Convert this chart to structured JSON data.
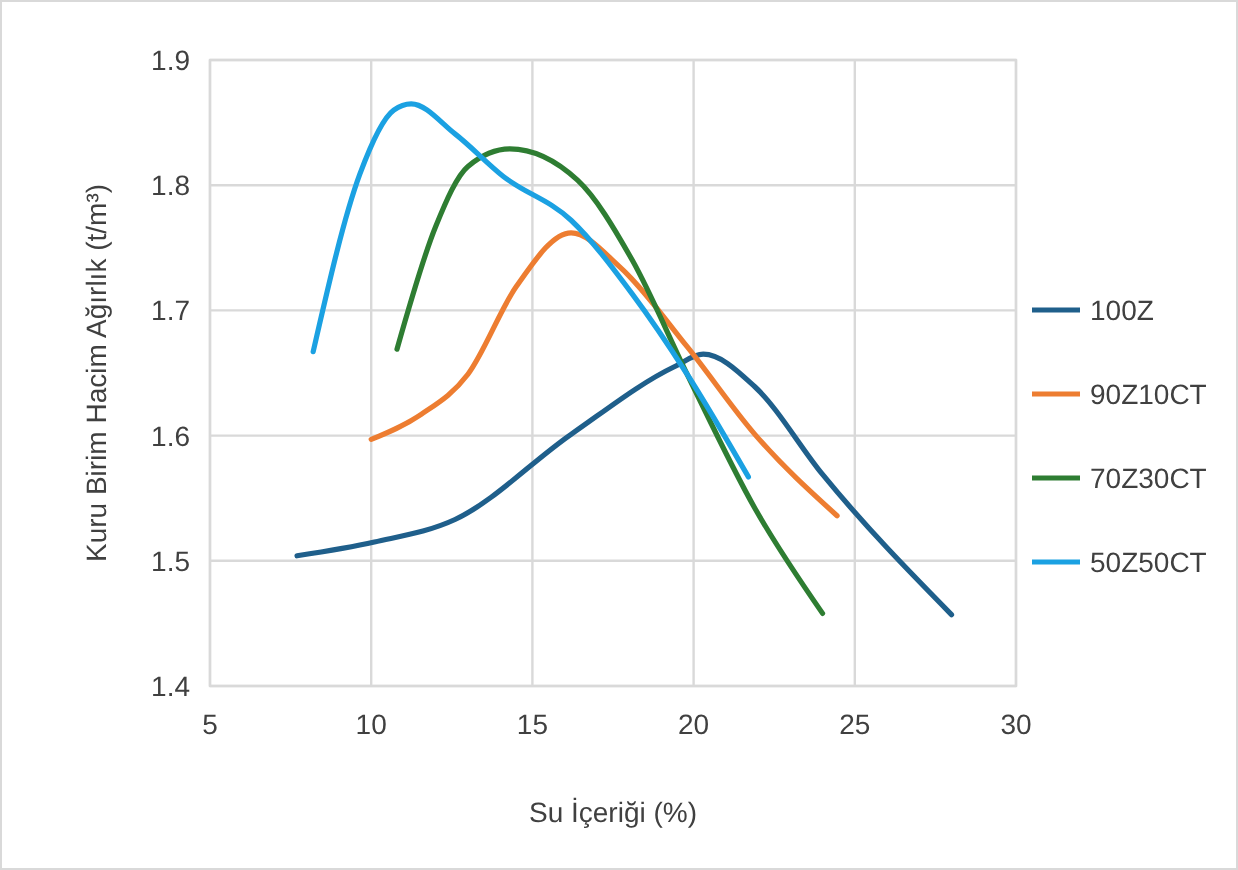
{
  "chart_data": {
    "type": "line",
    "xlabel": "Su İçeriği (%)",
    "ylabel": "Kuru Birim Hacim Ağırlık (t/m³)",
    "xlim": [
      5,
      30
    ],
    "xticks": [
      5,
      10,
      15,
      20,
      25,
      30
    ],
    "ylim": [
      1.4,
      1.9
    ],
    "yticks": [
      1.4,
      1.5,
      1.6,
      1.7,
      1.8,
      1.9
    ],
    "grid": true,
    "legend": "right",
    "marker": "none",
    "line_style": "solid",
    "series": [
      {
        "name": "100Z",
        "color": "#1f5f8b",
        "x": [
          7.7,
          10.1,
          12.6,
          16.2,
          19.4,
          20.3,
          21.9,
          24.0,
          28.0
        ],
        "values": [
          1.504,
          1.515,
          1.533,
          1.601,
          1.655,
          1.665,
          1.639,
          1.569,
          1.457
        ]
      },
      {
        "name": "90Z10CT",
        "color": "#ed7d31",
        "x": [
          10.0,
          11.55,
          13.0,
          14.5,
          16.2,
          17.7,
          19.8,
          21.9,
          24.45
        ],
        "values": [
          1.597,
          1.617,
          1.649,
          1.719,
          1.762,
          1.735,
          1.671,
          1.601,
          1.536
        ]
      },
      {
        "name": "70Z30CT",
        "color": "#2e7d32",
        "x": [
          10.8,
          12.0,
          13.0,
          14.3,
          16.4,
          18.1,
          19.8,
          21.9,
          24.0
        ],
        "values": [
          1.669,
          1.767,
          1.815,
          1.829,
          1.804,
          1.74,
          1.649,
          1.542,
          1.458
        ]
      },
      {
        "name": "50Z50CT",
        "color": "#1ba1e2",
        "x": [
          8.2,
          9.65,
          10.7,
          11.24,
          12.6,
          14.1,
          16.2,
          18.1,
          19.8,
          21.7
        ],
        "values": [
          1.667,
          1.809,
          1.86,
          1.865,
          1.841,
          1.807,
          1.772,
          1.713,
          1.649,
          1.567
        ]
      }
    ]
  }
}
